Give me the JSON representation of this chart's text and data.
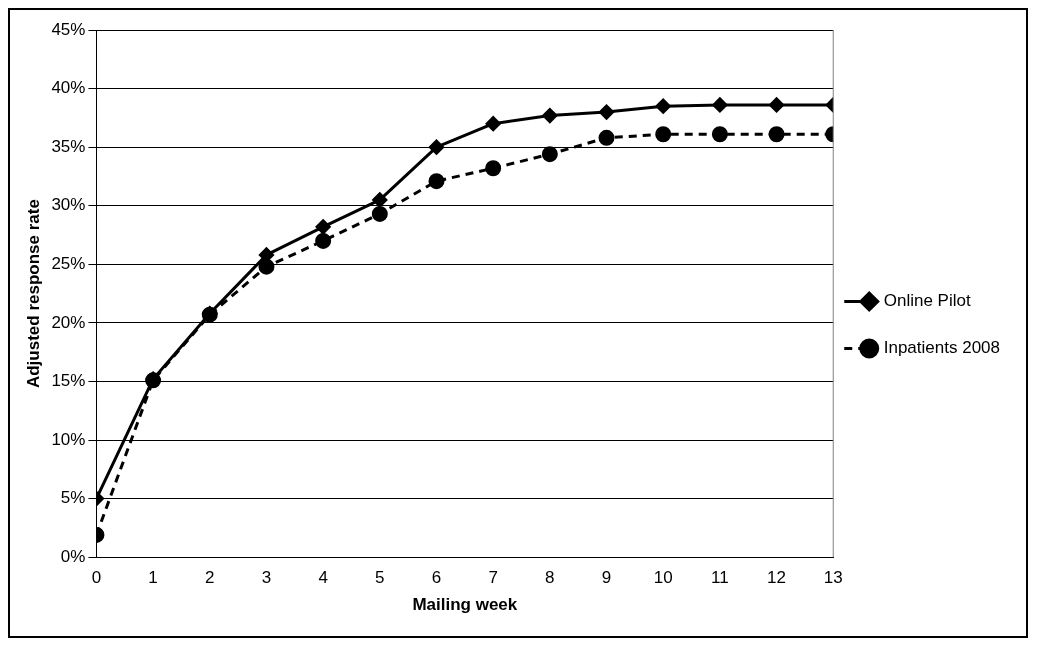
{
  "chart_data": {
    "type": "line",
    "xlabel": "Mailing week",
    "ylabel": "Adjusted response rate",
    "x": [
      0,
      1,
      2,
      3,
      4,
      5,
      6,
      7,
      8,
      9,
      10,
      11,
      12,
      13
    ],
    "series": [
      {
        "name": "Online Pilot",
        "color": "#000000",
        "marker": "diamond",
        "line_style": "solid",
        "values": [
          5,
          15.2,
          20.8,
          25.8,
          28.2,
          30.5,
          35,
          37,
          37.7,
          38,
          38.5,
          38.6,
          38.6,
          38.6
        ]
      },
      {
        "name": "Inpatients 2008",
        "color": "#000000",
        "marker": "circle",
        "line_style": "dashed",
        "values": [
          1.9,
          15.1,
          20.7,
          24.8,
          27,
          29.3,
          32.1,
          33.2,
          34.4,
          35.8,
          36.1,
          36.1,
          36.1,
          36.1
        ]
      }
    ],
    "xlim": [
      0,
      13
    ],
    "xticks": [
      0,
      1,
      2,
      3,
      4,
      5,
      6,
      7,
      8,
      9,
      10,
      11,
      12,
      13
    ],
    "ylim": [
      0,
      45
    ],
    "yticks": [
      {
        "value": 0,
        "label": "0%"
      },
      {
        "value": 5,
        "label": "5%"
      },
      {
        "value": 10,
        "label": "10%"
      },
      {
        "value": 15,
        "label": "15%"
      },
      {
        "value": 20,
        "label": "20%"
      },
      {
        "value": 25,
        "label": "25%"
      },
      {
        "value": 30,
        "label": "30%"
      },
      {
        "value": 35,
        "label": "35%"
      },
      {
        "value": 40,
        "label": "40%"
      },
      {
        "value": 45,
        "label": "45%"
      }
    ],
    "grid": "y",
    "legend": "right"
  }
}
